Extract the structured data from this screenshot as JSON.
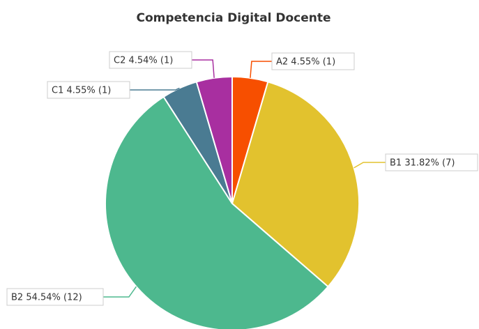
{
  "chart_data": {
    "type": "pie",
    "title": "Competencia Digital Docente",
    "values": [
      4.55,
      31.82,
      54.54,
      4.55,
      4.54
    ],
    "value_labels": [
      "A2 4.55% (1)",
      "B1 31.82% (7)",
      "B2 54.54% (12)",
      "C1 4.55% (1)",
      "C2 4.54% (1)"
    ],
    "colors": [
      "#f74f00",
      "#e2c22e",
      "#4db88e",
      "#4a7b92",
      "#a82fa0"
    ]
  }
}
